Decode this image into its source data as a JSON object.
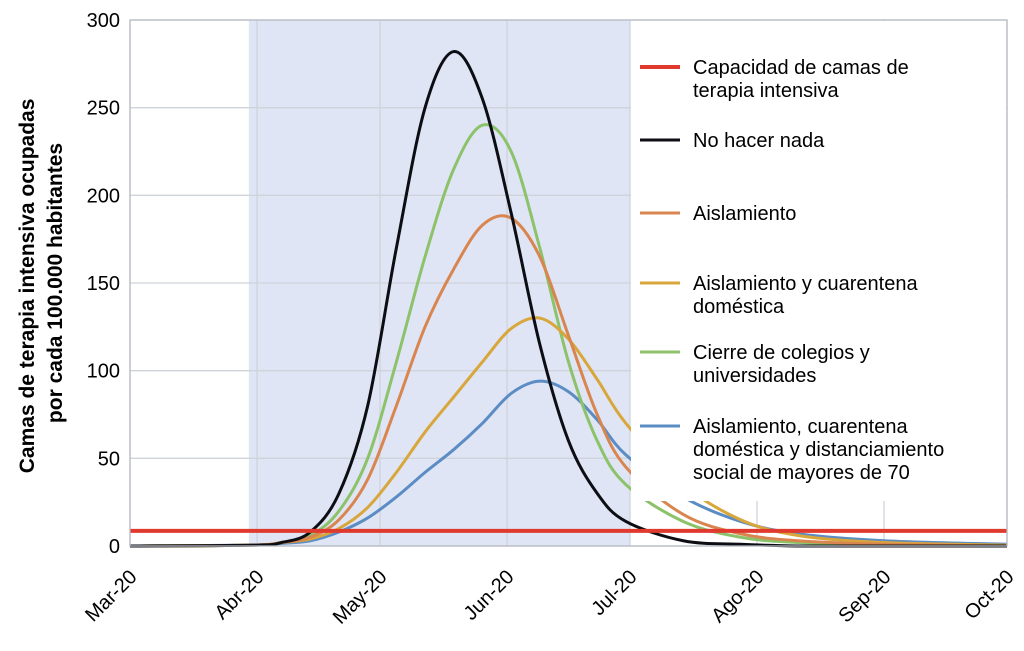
{
  "chart_data": {
    "type": "line",
    "title": "",
    "xlabel": "",
    "ylabel": "Camas de terapia intensiva ocupadas por cada 100.000 habitantes",
    "ylabel_lines": [
      "Camas de terapia intensiva ocupadas",
      "por cada 100.000 habitantes"
    ],
    "ylim": [
      0,
      300
    ],
    "yticks": [
      0,
      50,
      100,
      150,
      200,
      250,
      300
    ],
    "xlim": [
      "2020-03-01",
      "2020-10-01"
    ],
    "xticks": [
      {
        "date": "2020-03-01",
        "label": "Mar-20"
      },
      {
        "date": "2020-04-01",
        "label": "Abr-20"
      },
      {
        "date": "2020-05-01",
        "label": "May-20"
      },
      {
        "date": "2020-06-01",
        "label": "Jun-20"
      },
      {
        "date": "2020-07-01",
        "label": "Jul-20"
      },
      {
        "date": "2020-08-01",
        "label": "Ago-20"
      },
      {
        "date": "2020-09-01",
        "label": "Sep-20"
      },
      {
        "date": "2020-10-01",
        "label": "Oct-20"
      }
    ],
    "grid": true,
    "legend_position": "right",
    "shaded_range": {
      "from": "2020-03-30",
      "to": "2020-07-01",
      "color": "#dfe5f4"
    },
    "x": [
      "2020-03-01",
      "2020-03-31",
      "2020-04-07",
      "2020-04-14",
      "2020-04-21",
      "2020-04-28",
      "2020-05-05",
      "2020-05-12",
      "2020-05-19",
      "2020-05-26",
      "2020-06-02",
      "2020-06-09",
      "2020-06-16",
      "2020-06-23",
      "2020-06-30",
      "2020-07-14",
      "2020-07-28",
      "2020-08-11",
      "2020-09-01",
      "2020-10-01"
    ],
    "capacity": {
      "name_lines": [
        "Capacidad de camas de",
        "terapia intensiva"
      ],
      "value": 8.6,
      "color": "#e03a2f"
    },
    "series": [
      {
        "name_lines": [
          "No hacer nada"
        ],
        "color": "#0d0d14",
        "values": [
          0,
          0.5,
          2,
          8,
          30,
          80,
          170,
          250,
          282,
          255,
          190,
          115,
          60,
          30,
          14,
          3,
          1,
          0,
          0,
          0
        ]
      },
      {
        "name_lines": [
          " Aislamiento"
        ],
        "color": "#d9854f",
        "values": [
          0,
          0.5,
          2,
          5,
          15,
          38,
          80,
          125,
          158,
          183,
          187,
          165,
          120,
          75,
          45,
          18,
          7,
          3,
          1,
          0
        ]
      },
      {
        "name_lines": [
          "Aislamiento y cuarentena",
          "doméstica"
        ],
        "color": "#d8a63a",
        "values": [
          0,
          0.5,
          2,
          4,
          10,
          22,
          42,
          65,
          85,
          105,
          124,
          130,
          118,
          95,
          70,
          35,
          15,
          6,
          2,
          0.5
        ]
      },
      {
        "name_lines": [
          "Cierre de colegios y",
          "universidades"
        ],
        "color": "#8cc26a",
        "values": [
          0,
          0.5,
          2,
          6,
          20,
          50,
          105,
          165,
          215,
          240,
          225,
          170,
          105,
          60,
          35,
          14,
          5,
          2,
          1,
          0
        ]
      },
      {
        "name_lines": [
          "Aislamiento, cuarentena",
          "doméstica y distanciamiento",
          "social de mayores de 70"
        ],
        "color": "#5b8cc4",
        "values": [
          0,
          0.5,
          1.5,
          3,
          8,
          16,
          28,
          42,
          55,
          70,
          87,
          94,
          88,
          72,
          52,
          28,
          14,
          7,
          3,
          1
        ]
      }
    ]
  }
}
